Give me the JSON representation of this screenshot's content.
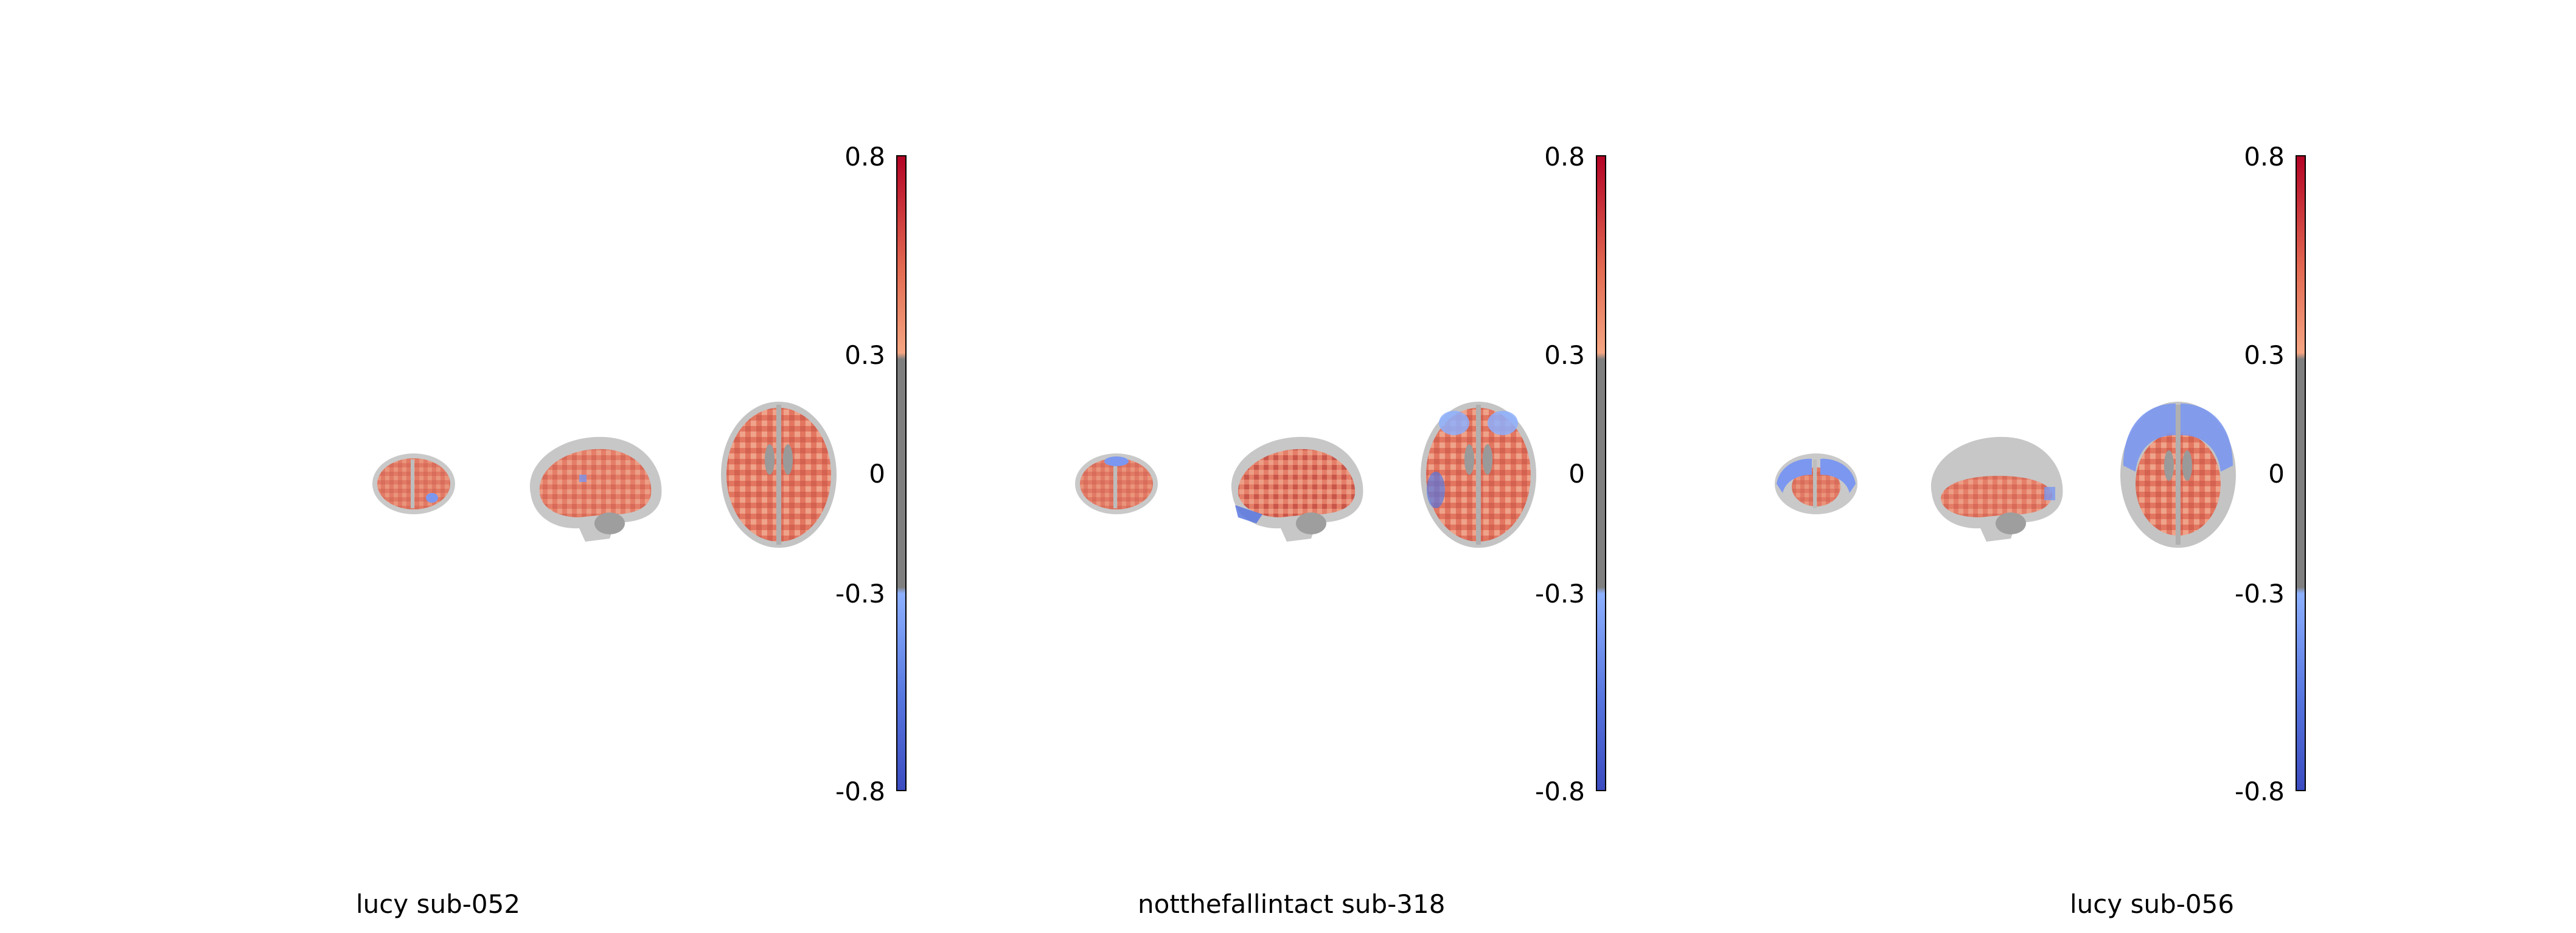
{
  "panels": [
    {
      "label": "lucy sub-052",
      "views": [
        "coronal",
        "sagittal",
        "axial"
      ],
      "colorbar": {
        "ticks": [
          "0.8",
          "0.3",
          "0",
          "-0.3",
          "-0.8"
        ],
        "colors": [
          "#b40426",
          "#e36b52",
          "#f4a582",
          "#7f7f7f",
          "#7f7f7f",
          "#8db0fe",
          "#5877e0",
          "#3b4cc0"
        ]
      }
    },
    {
      "label": "notthefallintact sub-318",
      "views": [
        "coronal",
        "sagittal",
        "axial"
      ],
      "colorbar": {
        "ticks": [
          "0.8",
          "0.3",
          "0",
          "-0.3",
          "-0.8"
        ],
        "colors": [
          "#b40426",
          "#e36b52",
          "#f4a582",
          "#7f7f7f",
          "#7f7f7f",
          "#8db0fe",
          "#5877e0",
          "#3b4cc0"
        ]
      }
    },
    {
      "label": "lucy sub-056",
      "views": [
        "coronal",
        "sagittal",
        "axial"
      ],
      "colorbar": {
        "ticks": [
          "0.8",
          "0.3",
          "0",
          "-0.3",
          "-0.8"
        ],
        "colors": [
          "#b40426",
          "#e36b52",
          "#f4a582",
          "#7f7f7f",
          "#7f7f7f",
          "#8db0fe",
          "#5877e0",
          "#3b4cc0"
        ]
      }
    }
  ]
}
